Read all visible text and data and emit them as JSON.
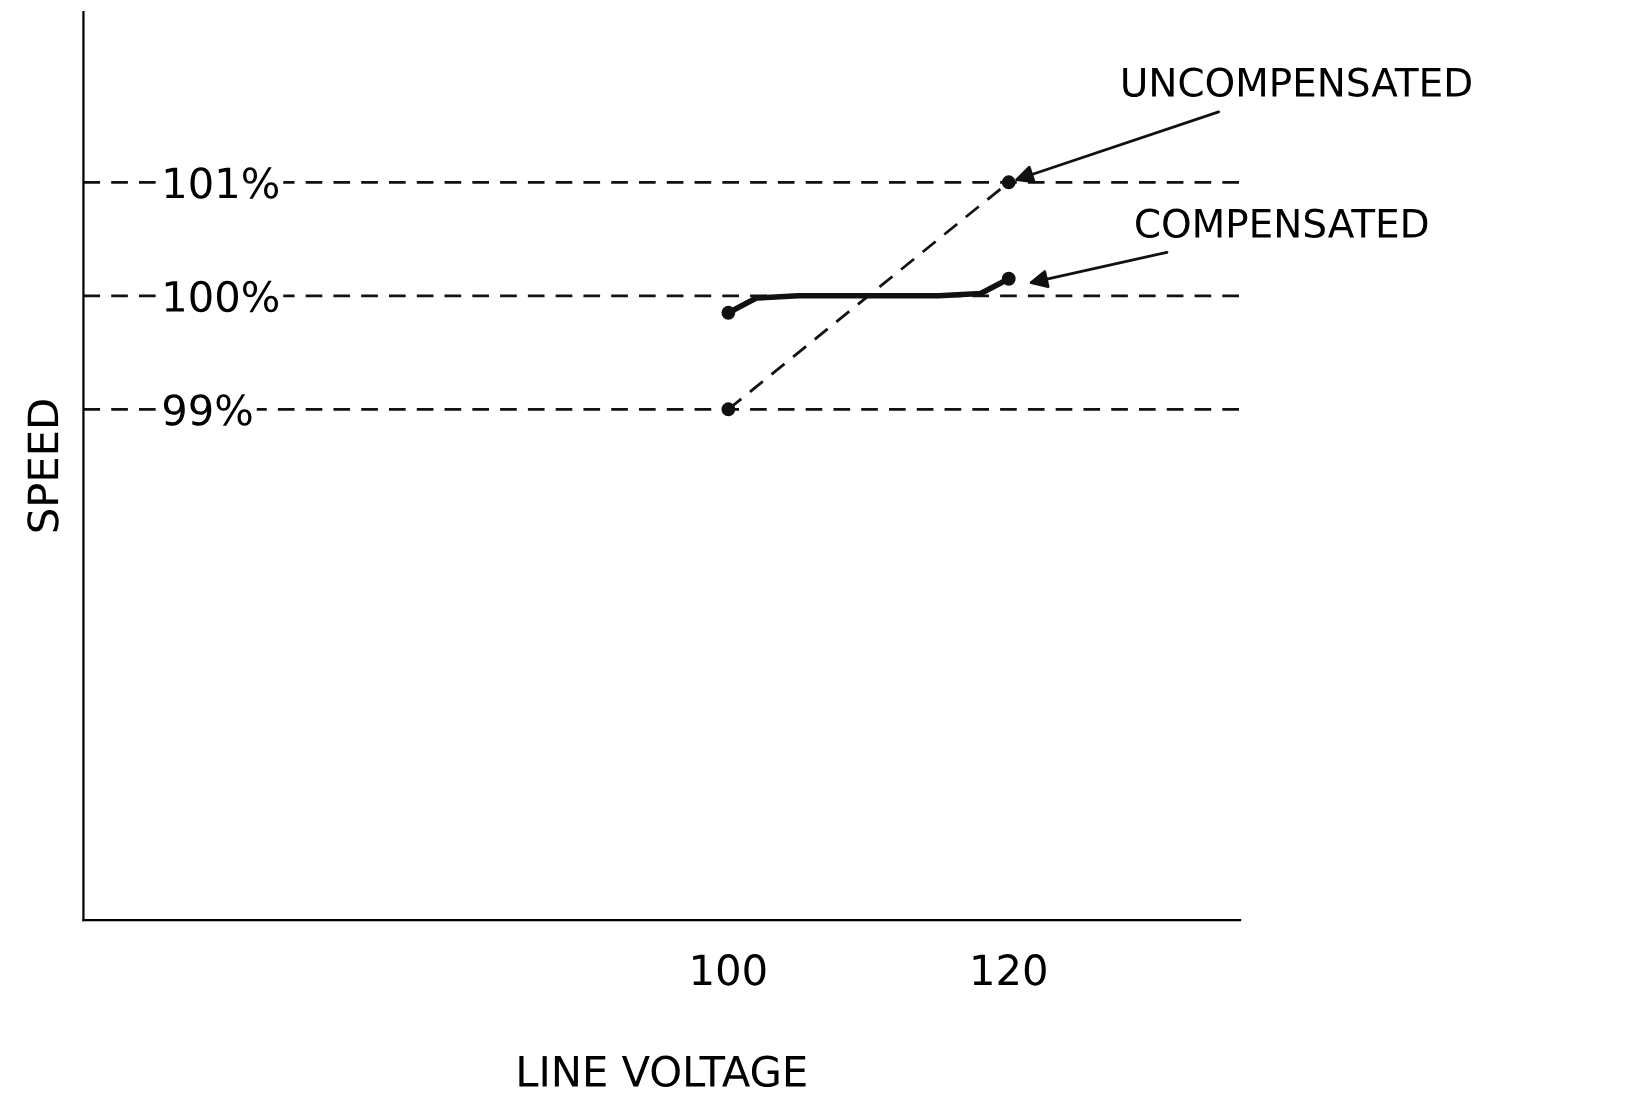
{
  "chart_data": {
    "type": "line",
    "xlabel": "LINE VOLTAGE",
    "ylabel": "SPEED",
    "xlim": [
      54,
      136.5
    ],
    "ylim": [
      94.5,
      102.5
    ],
    "xticks": [
      100,
      120
    ],
    "yticks": [
      {
        "value": 99,
        "label": "99%"
      },
      {
        "value": 100,
        "label": "100%"
      },
      {
        "value": 101,
        "label": "101%"
      }
    ],
    "series": [
      {
        "x": [
          100,
          120
        ],
        "values": [
          99,
          101
        ],
        "color": "#111111",
        "line_style": "dashed",
        "marker": "circle"
      },
      {
        "x": [
          100,
          102,
          105,
          110,
          115,
          118,
          120
        ],
        "values": [
          99.85,
          99.98,
          100,
          100,
          100,
          100.02,
          100.15
        ],
        "color": "#111111",
        "line_style": "solid"
      },
      {
        "type": "scatter",
        "x": [
          100,
          120
        ],
        "values": [
          99.85,
          100.15
        ],
        "color": "#111111",
        "marker": "circle"
      }
    ],
    "ref_lines": [
      {
        "axis": "y",
        "value": 99,
        "line_style": "dashed",
        "color": "#111111"
      },
      {
        "axis": "y",
        "value": 100,
        "line_style": "dashed",
        "color": "#111111"
      },
      {
        "axis": "y",
        "value": 101,
        "line_style": "dashed",
        "color": "#111111"
      }
    ],
    "annotations": [
      {
        "text": "UNCOMPENSATED",
        "x": 120,
        "y": 101
      },
      {
        "text": "COMPENSATED",
        "x": 121,
        "y": 100.1
      }
    ]
  }
}
